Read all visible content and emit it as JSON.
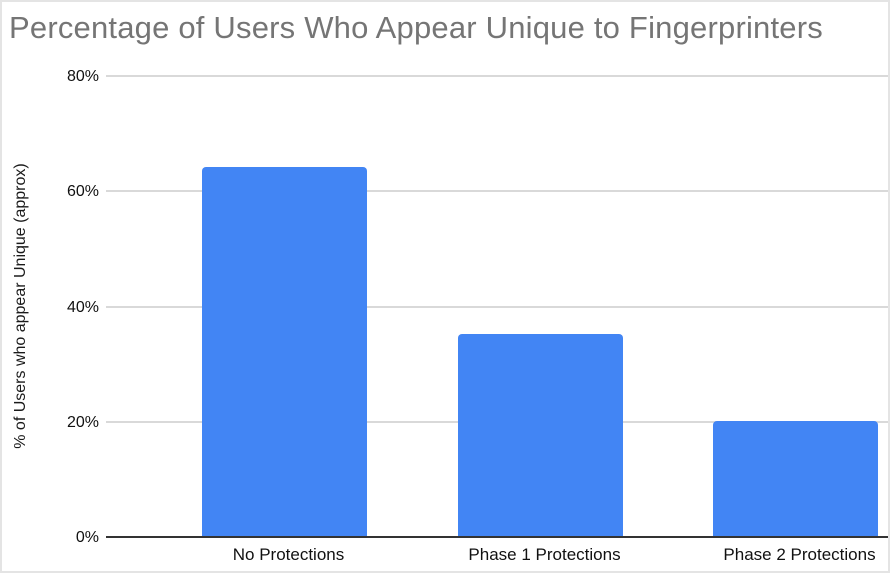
{
  "chart_data": {
    "type": "bar",
    "title": "Percentage of Users Who Appear Unique to Fingerprinters",
    "xlabel": "",
    "ylabel": "% of Users who appear Unique (approx)",
    "categories": [
      "No Protections",
      "Phase 1 Protections",
      "Phase 2 Protections"
    ],
    "values": [
      64,
      35,
      20
    ],
    "ylim": [
      0,
      80
    ],
    "yticks": [
      0,
      20,
      40,
      60,
      80
    ],
    "ytick_labels": [
      "0%",
      "20%",
      "40%",
      "60%",
      "80%"
    ],
    "grid": true,
    "legend": false,
    "bar_color": "#4285f4",
    "colors": {
      "title_text": "#757575",
      "axis_text": "#111111",
      "gridline": "#d9d9d9",
      "baseline": "#333333",
      "background": "#ffffff",
      "border": "#e4e4e4"
    }
  }
}
